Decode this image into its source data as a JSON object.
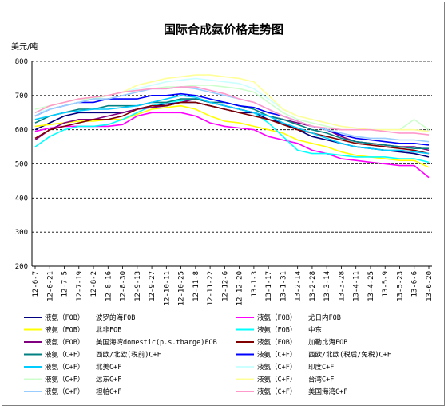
{
  "chart_data": {
    "type": "line",
    "title": "国际合成氨价格走势图",
    "unit_label": "美元/吨",
    "ylim": [
      200,
      800
    ],
    "yticks": [
      200,
      300,
      400,
      500,
      600,
      700,
      800
    ],
    "grid": "horizontal-dashed",
    "legend_position": "bottom",
    "x_tick_labels": [
      "12-6-7",
      "12-6-21",
      "12-7-5",
      "12-7-19",
      "12-8-2",
      "12-8-16",
      "12-8-30",
      "12-9-13",
      "12-9-27",
      "12-10-11",
      "12-10-25",
      "12-11-8",
      "12-11-22",
      "12-12-6",
      "12-12-20",
      "13-1-3",
      "13-1-17",
      "13-1-31",
      "13-2-14",
      "13-2-28",
      "13-3-14",
      "13-3-28",
      "13-4-11",
      "13-4-25",
      "13-5-9",
      "13-5-23",
      "13-6-6",
      "13-6-20"
    ],
    "series": [
      {
        "product": "液氨（FOB）",
        "name": "波罗的海FOB",
        "color": "#000080",
        "values": [
          600,
          620,
          640,
          650,
          650,
          650,
          650,
          660,
          670,
          675,
          680,
          680,
          670,
          660,
          650,
          650,
          630,
          620,
          600,
          580,
          570,
          560,
          550,
          545,
          540,
          535,
          530,
          520
        ]
      },
      {
        "product": "液氨（FOB）",
        "name": "尤日内FOB",
        "color": "#ff00ff",
        "values": [
          595,
          605,
          610,
          610,
          610,
          610,
          615,
          640,
          650,
          650,
          650,
          640,
          620,
          610,
          605,
          600,
          580,
          570,
          560,
          540,
          530,
          515,
          510,
          505,
          500,
          495,
          495,
          460
        ]
      },
      {
        "product": "液氨（FOB）",
        "name": "北非FOB",
        "color": "#ffff00",
        "values": [
          610,
          615,
          620,
          625,
          625,
          630,
          630,
          645,
          660,
          665,
          670,
          660,
          640,
          625,
          620,
          610,
          600,
          590,
          570,
          560,
          550,
          535,
          525,
          520,
          515,
          510,
          510,
          490
        ]
      },
      {
        "product": "液氨（FOB）",
        "name": "中东",
        "color": "#00ffff",
        "values": [
          550,
          580,
          600,
          610,
          610,
          615,
          630,
          650,
          670,
          680,
          685,
          690,
          680,
          670,
          660,
          650,
          620,
          580,
          540,
          530,
          530,
          525,
          520,
          520,
          520,
          515,
          515,
          505
        ]
      },
      {
        "product": "液氨（FOB）",
        "name": "美国海湾domestic(p.s.tbarge)FOB",
        "color": "#800080",
        "values": [
          570,
          600,
          620,
          630,
          630,
          640,
          650,
          660,
          665,
          670,
          680,
          690,
          680,
          670,
          660,
          650,
          640,
          630,
          620,
          610,
          600,
          580,
          565,
          560,
          555,
          550,
          550,
          540
        ]
      },
      {
        "product": "液氨（FOB）",
        "name": "加勒比海FOB",
        "color": "#800000",
        "values": [
          575,
          600,
          610,
          620,
          630,
          630,
          640,
          660,
          670,
          670,
          680,
          680,
          670,
          660,
          650,
          640,
          630,
          615,
          600,
          590,
          580,
          570,
          560,
          555,
          550,
          545,
          540,
          530
        ]
      },
      {
        "product": "液氨（C+F）",
        "name": "西欧/北欧(税前)C+F",
        "color": "#008080",
        "values": [
          620,
          640,
          650,
          660,
          660,
          670,
          670,
          670,
          680,
          680,
          690,
          690,
          680,
          680,
          670,
          660,
          640,
          630,
          615,
          600,
          590,
          575,
          565,
          560,
          555,
          550,
          545,
          545
        ]
      },
      {
        "product": "液氨（C+F）",
        "name": "西欧/北欧(税后/免税)C+F",
        "color": "#0000ff",
        "values": [
          640,
          660,
          670,
          680,
          680,
          690,
          690,
          690,
          700,
          700,
          705,
          700,
          690,
          680,
          670,
          665,
          650,
          640,
          625,
          610,
          600,
          585,
          575,
          570,
          565,
          560,
          560,
          555
        ]
      },
      {
        "product": "液氨（C+F）",
        "name": "北美C+F",
        "color": "#00ccff",
        "values": [
          630,
          640,
          650,
          655,
          660,
          660,
          665,
          670,
          680,
          690,
          700,
          695,
          680,
          670,
          660,
          650,
          640,
          620,
          605,
          590,
          575,
          560,
          550,
          545,
          540,
          540,
          535,
          530
        ]
      },
      {
        "product": "液氨（C+F）",
        "name": "印度C+F",
        "color": "#ccffff",
        "values": [
          650,
          660,
          670,
          680,
          690,
          700,
          710,
          720,
          730,
          740,
          745,
          750,
          745,
          740,
          735,
          720,
          690,
          660,
          640,
          630,
          620,
          610,
          605,
          600,
          600,
          600,
          600,
          595
        ]
      },
      {
        "product": "液氨（C+F）",
        "name": "远东C+F",
        "color": "#ccffcc",
        "values": [
          660,
          670,
          680,
          690,
          690,
          700,
          710,
          715,
          720,
          725,
          725,
          730,
          730,
          725,
          720,
          710,
          680,
          650,
          630,
          620,
          610,
          600,
          600,
          600,
          600,
          600,
          630,
          600
        ]
      },
      {
        "product": "液氨（C+F）",
        "name": "台湾C+F",
        "color": "#ffff99",
        "values": [
          650,
          670,
          680,
          690,
          695,
          700,
          710,
          730,
          740,
          750,
          755,
          760,
          760,
          755,
          750,
          740,
          700,
          660,
          640,
          630,
          620,
          610,
          605,
          600,
          600,
          600,
          600,
          595
        ]
      },
      {
        "product": "液氨（C+F）",
        "name": "坦帕C+F",
        "color": "#99ccff",
        "values": [
          640,
          660,
          670,
          680,
          690,
          690,
          700,
          710,
          720,
          720,
          725,
          720,
          710,
          700,
          690,
          680,
          660,
          640,
          625,
          610,
          600,
          590,
          580,
          575,
          575,
          570,
          570,
          565
        ]
      },
      {
        "product": "液氨（C+F）",
        "name": "美国海湾C+F",
        "color": "#ff99cc",
        "values": [
          650,
          670,
          680,
          690,
          695,
          700,
          710,
          715,
          720,
          720,
          725,
          725,
          715,
          705,
          690,
          680,
          660,
          640,
          625,
          610,
          605,
          600,
          600,
          600,
          595,
          590,
          590,
          585
        ]
      }
    ]
  }
}
